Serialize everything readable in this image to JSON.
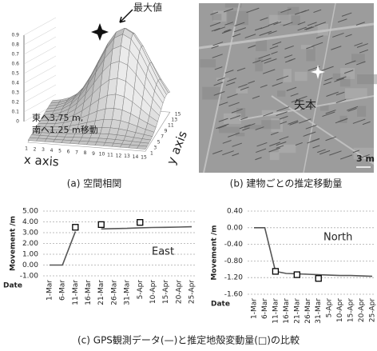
{
  "panel_a": {
    "peak_label": "最大値",
    "shift_line1": "東へ3.75 m,",
    "shift_line2": "南へ1.25 m移動",
    "x_label": "x axis",
    "y_label": "y axis",
    "z_ticks": [
      0,
      0.1,
      0.2,
      0.3,
      0.4,
      0.5,
      0.6,
      0.7,
      0.8,
      0.9
    ],
    "x_ticks": [
      1,
      2,
      3,
      4,
      5,
      6,
      7,
      8,
      9,
      10,
      11,
      12,
      13,
      14,
      15
    ],
    "y_ticks": [
      1,
      3,
      5,
      7,
      9,
      11,
      13,
      15
    ],
    "caption": "(a) 空間相関"
  },
  "panel_b": {
    "place_label": "矢本",
    "scale_label": "3 m",
    "caption": "(b) 建物ごとの推定移動量"
  },
  "chart_data": [
    {
      "type": "line",
      "ylabel": "Movement /m",
      "xlabel": "Date",
      "annotation": "East",
      "categories": [
        "1-Mar",
        "6-Mar",
        "11-Mar",
        "16-Mar",
        "21-Mar",
        "26-Mar",
        "31-Mar",
        "5-Apr",
        "10-Apr",
        "15-Apr",
        "20-Apr",
        "25-Apr"
      ],
      "series": [
        {
          "color": "#555555",
          "values": [
            0,
            0,
            3.1,
            null,
            3.35,
            3.38,
            3.4,
            3.45,
            3.48,
            3.5,
            3.52,
            3.55
          ]
        },
        {
          "color": "#000000",
          "marker": "square",
          "values": [
            null,
            null,
            3.5,
            null,
            3.75,
            null,
            null,
            3.95,
            null,
            null,
            null,
            null
          ]
        }
      ],
      "ylim": [
        -1,
        5
      ],
      "yticks": [
        {
          "value": -1,
          "label": "-1.00"
        },
        {
          "value": 0,
          "label": "0.00"
        },
        {
          "value": 1,
          "label": "1.00"
        },
        {
          "value": 2,
          "label": "2.00"
        },
        {
          "value": 3,
          "label": "3.00"
        },
        {
          "value": 4,
          "label": "4.00"
        },
        {
          "value": 5,
          "label": "5.00"
        }
      ],
      "grid": true
    },
    {
      "type": "line",
      "ylabel": "Movement /m",
      "xlabel": "Date",
      "annotation": "North",
      "categories": [
        "1-Mar",
        "6-Mar",
        "11-Mar",
        "16-Mar",
        "21-Mar",
        "26-Mar",
        "31-Mar",
        "5-Apr",
        "10-Apr",
        "15-Apr",
        "20-Apr",
        "25-Apr"
      ],
      "series": [
        {
          "color": "#555555",
          "values": [
            0,
            0,
            -1.05,
            -1.1,
            -1.11,
            -1.12,
            -1.13,
            -1.14,
            -1.15,
            -1.15,
            -1.16,
            -1.17
          ]
        },
        {
          "color": "#000000",
          "marker": "square",
          "values": [
            null,
            null,
            -1.05,
            null,
            -1.13,
            null,
            -1.22,
            null,
            null,
            null,
            null,
            null
          ]
        }
      ],
      "ylim": [
        -1.6,
        0.4
      ],
      "yticks": [
        {
          "value": 0.4,
          "label": "0.40"
        },
        {
          "value": 0,
          "label": "0.00"
        },
        {
          "value": -0.4,
          "label": "-0.40"
        },
        {
          "value": -0.8,
          "label": "-0.80"
        },
        {
          "value": -1.2,
          "label": "-1.20"
        },
        {
          "value": -1.6,
          "label": "-1.60"
        }
      ],
      "grid": true
    }
  ],
  "caption_c": "(c) GPS観測データ(—)と推定地殻変動量(□)の比較"
}
